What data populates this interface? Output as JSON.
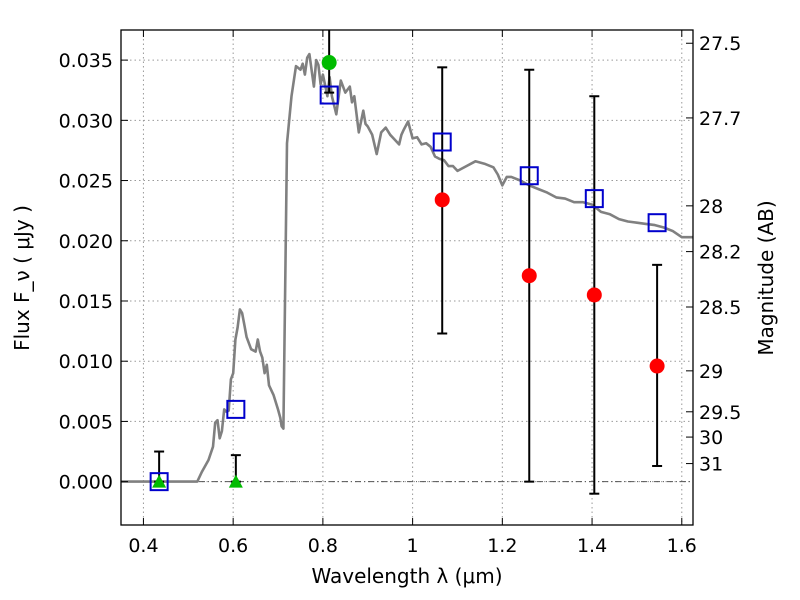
{
  "chart_data": {
    "type": "scatter",
    "title": "",
    "xlabel": "Wavelength  λ (μm)",
    "ylabel": "Flux  F_ν  ( μJy )",
    "ylabel_right": "Magnitude (AB)",
    "xlim": [
      0.35,
      1.625
    ],
    "ylim": [
      -0.0036,
      0.0375
    ],
    "grid": true,
    "x_ticks": [
      {
        "value": 0.4,
        "label": "0.4"
      },
      {
        "value": 0.6,
        "label": "0.6"
      },
      {
        "value": 0.8,
        "label": "0.8"
      },
      {
        "value": 1.0,
        "label": "1"
      },
      {
        "value": 1.2,
        "label": "1.2"
      },
      {
        "value": 1.4,
        "label": "1.4"
      },
      {
        "value": 1.6,
        "label": "1.6"
      }
    ],
    "y_ticks": [
      {
        "value": 0.0,
        "label": "0.000"
      },
      {
        "value": 0.005,
        "label": "0.005"
      },
      {
        "value": 0.01,
        "label": "0.010"
      },
      {
        "value": 0.015,
        "label": "0.015"
      },
      {
        "value": 0.02,
        "label": "0.020"
      },
      {
        "value": 0.025,
        "label": "0.025"
      },
      {
        "value": 0.03,
        "label": "0.030"
      },
      {
        "value": 0.035,
        "label": "0.035"
      }
    ],
    "mag_ticks": [
      {
        "value": 0.0364,
        "label": "27.5"
      },
      {
        "value": 0.0302,
        "label": "27.7"
      },
      {
        "value": 0.0229,
        "label": "28"
      },
      {
        "value": 0.0191,
        "label": "28.2"
      },
      {
        "value": 0.0145,
        "label": "28.5"
      },
      {
        "value": 0.0092,
        "label": "29"
      },
      {
        "value": 0.0058,
        "label": "29.5"
      },
      {
        "value": 0.0037,
        "label": "30"
      },
      {
        "value": 0.0015,
        "label": "31"
      }
    ],
    "series": [
      {
        "kind": "sed_line",
        "color": "#808080",
        "x": [
          0.35,
          0.52,
          0.53,
          0.545,
          0.555,
          0.56,
          0.565,
          0.57,
          0.575,
          0.58,
          0.585,
          0.59,
          0.595,
          0.6,
          0.605,
          0.61,
          0.615,
          0.62,
          0.625,
          0.63,
          0.64,
          0.65,
          0.655,
          0.66,
          0.665,
          0.67,
          0.675,
          0.68,
          0.69,
          0.7,
          0.705,
          0.708,
          0.712,
          0.72,
          0.73,
          0.74,
          0.75,
          0.755,
          0.76,
          0.765,
          0.77,
          0.78,
          0.785,
          0.79,
          0.795,
          0.8,
          0.81,
          0.815,
          0.82,
          0.83,
          0.84,
          0.85,
          0.86,
          0.865,
          0.87,
          0.88,
          0.89,
          0.895,
          0.9,
          0.91,
          0.92,
          0.93,
          0.94,
          0.95,
          0.96,
          0.97,
          0.975,
          0.98,
          0.99,
          1.0,
          1.01,
          1.02,
          1.03,
          1.04,
          1.05,
          1.06,
          1.07,
          1.08,
          1.09,
          1.1,
          1.12,
          1.14,
          1.16,
          1.18,
          1.19,
          1.2,
          1.21,
          1.22,
          1.24,
          1.26,
          1.28,
          1.3,
          1.32,
          1.34,
          1.36,
          1.38,
          1.4,
          1.42,
          1.44,
          1.46,
          1.48,
          1.5,
          1.52,
          1.54,
          1.56,
          1.58,
          1.6,
          1.625
        ],
        "y": [
          0.0,
          0.0,
          0.0008,
          0.0018,
          0.0029,
          0.0049,
          0.0051,
          0.0036,
          0.0042,
          0.006,
          0.0058,
          0.0059,
          0.0085,
          0.009,
          0.0118,
          0.0128,
          0.0143,
          0.014,
          0.013,
          0.012,
          0.011,
          0.0108,
          0.0118,
          0.0108,
          0.0103,
          0.009,
          0.0097,
          0.008,
          0.0072,
          0.006,
          0.0053,
          0.0046,
          0.0044,
          0.0281,
          0.032,
          0.0345,
          0.0342,
          0.0347,
          0.0338,
          0.0352,
          0.0355,
          0.0328,
          0.035,
          0.0346,
          0.033,
          0.0338,
          0.032,
          0.0336,
          0.032,
          0.0305,
          0.0333,
          0.0323,
          0.0328,
          0.0315,
          0.032,
          0.029,
          0.0308,
          0.0297,
          0.0295,
          0.0288,
          0.0272,
          0.029,
          0.0294,
          0.0288,
          0.0284,
          0.028,
          0.0288,
          0.0292,
          0.0299,
          0.0285,
          0.0286,
          0.028,
          0.0281,
          0.0278,
          0.027,
          0.0268,
          0.0267,
          0.0262,
          0.0262,
          0.0258,
          0.0262,
          0.0266,
          0.0264,
          0.0261,
          0.0255,
          0.0246,
          0.0253,
          0.0253,
          0.025,
          0.0246,
          0.0243,
          0.024,
          0.0236,
          0.0235,
          0.0232,
          0.0232,
          0.023,
          0.0224,
          0.0222,
          0.0218,
          0.0216,
          0.0215,
          0.0214,
          0.0213,
          0.0211,
          0.0208,
          0.0203,
          0.0203
        ]
      },
      {
        "kind": "model_squares",
        "marker": "square-open",
        "color": "#0000cc",
        "x": [
          0.435,
          0.606,
          0.814,
          1.066,
          1.26,
          1.405,
          1.545
        ],
        "y": [
          0.0,
          0.006,
          0.0321,
          0.0282,
          0.0254,
          0.0235,
          0.0215
        ]
      },
      {
        "kind": "detections",
        "marker": "circle",
        "color": "#ff0000",
        "x": [
          1.066,
          1.26,
          1.405,
          1.545
        ],
        "y": [
          0.0234,
          0.0171,
          0.0155,
          0.0096
        ],
        "err_low": [
          0.0111,
          0.0171,
          0.0165,
          0.0083
        ],
        "err_high": [
          0.011,
          0.0171,
          0.0165,
          0.0084
        ]
      },
      {
        "kind": "detection_optical",
        "marker": "circle",
        "color": "#00bb00",
        "x": [
          0.814
        ],
        "y": [
          0.0348
        ],
        "err_low": [
          0.0025
        ],
        "err_high": [
          0.004
        ]
      },
      {
        "kind": "upper_limits",
        "marker": "triangle",
        "color": "#00bb00",
        "x": [
          0.435,
          0.606
        ],
        "y": [
          0.0,
          0.0
        ],
        "err_low": [
          0.0,
          0.0
        ],
        "err_high": [
          0.0025,
          0.0022
        ]
      }
    ]
  }
}
